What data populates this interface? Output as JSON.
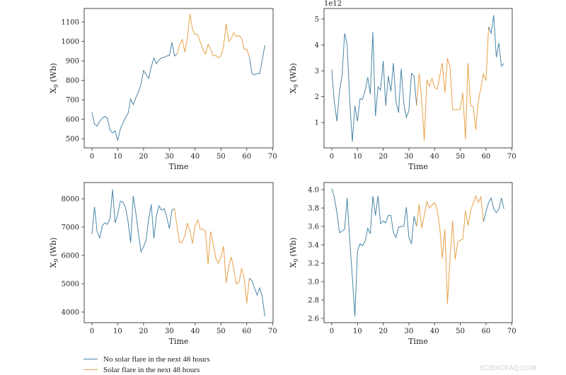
{
  "colors": {
    "no_flare": "#4a86a8",
    "flare": "#e8a048",
    "axis": "#333333"
  },
  "legend": {
    "no_flare": "No solar flare in the next 48 hours",
    "flare": "Solar flare in the next 48 hours"
  },
  "watermark": "SCIENCEAQ.COM",
  "chart_data": [
    {
      "type": "line",
      "xlabel": "Time",
      "ylabel": "X",
      "ylabel_sub": "9",
      "ylabel_unit": "(Wb)",
      "offset_text": "",
      "xlim": [
        -3,
        70.2
      ],
      "ylim": [
        453,
        1169
      ],
      "xticks": [
        0,
        10,
        20,
        30,
        40,
        50,
        60,
        70
      ],
      "yticks": [
        500,
        600,
        700,
        800,
        900,
        1000,
        1100
      ],
      "flare_period": [
        33,
        61
      ],
      "x_start": 0,
      "values": [
        635,
        575,
        565,
        590,
        605,
        615,
        605,
        545,
        530,
        540,
        490,
        550,
        580,
        610,
        630,
        705,
        675,
        710,
        740,
        780,
        850,
        830,
        810,
        870,
        915,
        885,
        905,
        915,
        918,
        925,
        928,
        995,
        925,
        935,
        985,
        1010,
        945,
        1020,
        1140,
        1060,
        1035,
        1035,
        995,
        960,
        935,
        985,
        960,
        925,
        928,
        915,
        925,
        975,
        1090,
        1000,
        1015,
        1045,
        1025,
        1030,
        1015,
        960,
        960,
        920,
        835,
        828,
        835,
        835,
        905,
        980
      ]
    },
    {
      "type": "line",
      "xlabel": "Time",
      "ylabel": "X",
      "ylabel_sub": "9",
      "ylabel_unit": "(Wb)",
      "offset_text": "1e12",
      "xlim": [
        -3,
        70.2
      ],
      "ylim": [
        0.02,
        5.41
      ],
      "xticks": [
        0,
        10,
        20,
        30,
        40,
        50,
        60,
        70
      ],
      "yticks": [
        1,
        2,
        3,
        4,
        5
      ],
      "flare_period": [
        33,
        61
      ],
      "x_start": 0,
      "values": [
        3.05,
        1.8,
        1.05,
        2.2,
        2.8,
        4.45,
        4.0,
        1.85,
        0.25,
        1.65,
        1.05,
        1.92,
        1.9,
        2.25,
        2.75,
        2.1,
        4.5,
        1.25,
        2.38,
        2.25,
        3.38,
        1.65,
        2.8,
        2.2,
        3.3,
        1.8,
        1.38,
        3.08,
        1.75,
        1.2,
        1.45,
        2.9,
        2.8,
        1.65,
        2.9,
        1.85,
        0.3,
        2.65,
        2.4,
        2.7,
        2.35,
        2.3,
        2.8,
        3.3,
        2.15,
        3.48,
        3.15,
        1.5,
        1.5,
        1.5,
        1.52,
        2.15,
        0.35,
        3.3,
        1.65,
        1.62,
        0.72,
        1.8,
        2.35,
        2.88,
        2.62,
        4.7,
        4.45,
        5.15,
        3.52,
        4.08,
        3.18,
        3.28
      ]
    },
    {
      "type": "line",
      "xlabel": "Time",
      "ylabel": "X",
      "ylabel_sub": "9",
      "ylabel_unit": "(Wb)",
      "offset_text": "",
      "xlim": [
        -3,
        70.2
      ],
      "ylim": [
        3625,
        8575
      ],
      "xticks": [
        0,
        10,
        20,
        30,
        40,
        50,
        60,
        70
      ],
      "yticks": [
        4000,
        5000,
        6000,
        7000,
        8000
      ],
      "flare_period": [
        32,
        61
      ],
      "x_start": 0,
      "values": [
        6750,
        7720,
        6850,
        6620,
        7050,
        7150,
        7100,
        7300,
        8330,
        7150,
        7450,
        7920,
        7880,
        7700,
        7200,
        6450,
        8100,
        7500,
        6800,
        6130,
        6300,
        6550,
        7300,
        7800,
        6600,
        7400,
        7750,
        7600,
        7650,
        7350,
        6950,
        7600,
        7650,
        7000,
        6450,
        6480,
        6700,
        7150,
        6850,
        6420,
        7050,
        7250,
        6920,
        6930,
        6850,
        5680,
        6850,
        6400,
        5900,
        5720,
        5950,
        6320,
        5030,
        5600,
        5950,
        5500,
        4990,
        5050,
        5550,
        5200,
        4300,
        5200,
        5100,
        4850,
        4600,
        4850,
        4550,
        3850
      ]
    },
    {
      "type": "line",
      "xlabel": "Time",
      "ylabel": "X",
      "ylabel_sub": "9",
      "ylabel_unit": "(Wb)",
      "offset_text": "",
      "xlim": [
        -3,
        70.2
      ],
      "ylim": [
        2.554,
        4.077
      ],
      "xticks": [
        0,
        10,
        20,
        30,
        40,
        50,
        60,
        70
      ],
      "yticks": [
        2.6,
        2.8,
        3.0,
        3.2,
        3.4,
        3.6,
        3.8,
        4.0
      ],
      "flare_period": [
        33,
        59
      ],
      "x_start": 0,
      "values": [
        4.01,
        3.92,
        3.75,
        3.53,
        3.55,
        3.57,
        3.91,
        3.45,
        3.05,
        2.62,
        3.33,
        3.41,
        3.39,
        3.44,
        3.58,
        3.52,
        3.93,
        3.72,
        3.93,
        3.63,
        3.66,
        3.64,
        3.72,
        3.72,
        3.53,
        3.48,
        3.59,
        3.6,
        3.6,
        3.81,
        3.48,
        3.41,
        3.71,
        3.6,
        3.84,
        3.58,
        3.72,
        3.87,
        3.8,
        3.83,
        3.86,
        3.78,
        3.6,
        3.25,
        3.57,
        2.76,
        3.25,
        3.66,
        3.24,
        3.43,
        3.45,
        3.46,
        3.77,
        3.61,
        3.77,
        3.85,
        3.93,
        3.86,
        3.92,
        3.65,
        3.76,
        3.86,
        3.91,
        3.79,
        3.75,
        3.79,
        3.91,
        3.79
      ]
    }
  ]
}
